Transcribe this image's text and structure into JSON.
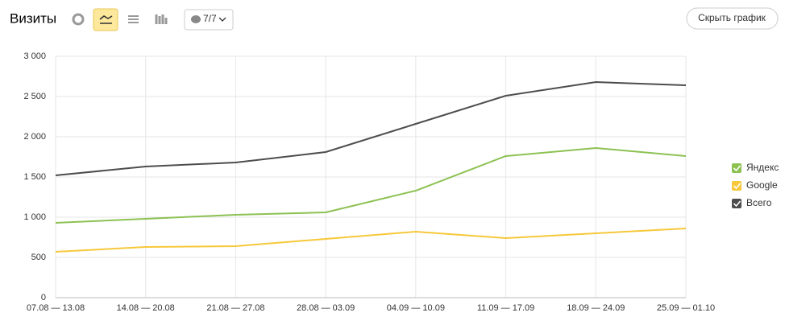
{
  "header": {
    "title": "Визиты",
    "filter": "7/7",
    "hide_button": "Скрыть график"
  },
  "chart_data": {
    "type": "line",
    "categories": [
      "07.08 — 13.08",
      "14.08 — 20.08",
      "21.08 — 27.08",
      "28.08 — 03.09",
      "04.09 — 10.09",
      "11.09 — 17.09",
      "18.09 — 24.09",
      "25.09 — 01.10"
    ],
    "series": [
      {
        "name": "Яндекс",
        "color": "#8cc152",
        "values": [
          930,
          980,
          1030,
          1060,
          1330,
          1760,
          1860,
          1760
        ]
      },
      {
        "name": "Google",
        "color": "#f6c83a",
        "values": [
          570,
          630,
          640,
          730,
          820,
          740,
          800,
          860
        ]
      },
      {
        "name": "Всего",
        "color": "#4d4d4d",
        "values": [
          1520,
          1630,
          1680,
          1810,
          2160,
          2510,
          2680,
          2640
        ]
      }
    ],
    "ylim": [
      0,
      3000
    ],
    "yticks": [
      0,
      500,
      {
        "value": 1000,
        "label": "1 000"
      },
      {
        "value": 1500,
        "label": "1 500"
      },
      {
        "value": 2000,
        "label": "2 000"
      },
      {
        "value": 2500,
        "label": "2 500"
      },
      {
        "value": 3000,
        "label": "3 000"
      }
    ],
    "grid": true,
    "legend": "right"
  }
}
